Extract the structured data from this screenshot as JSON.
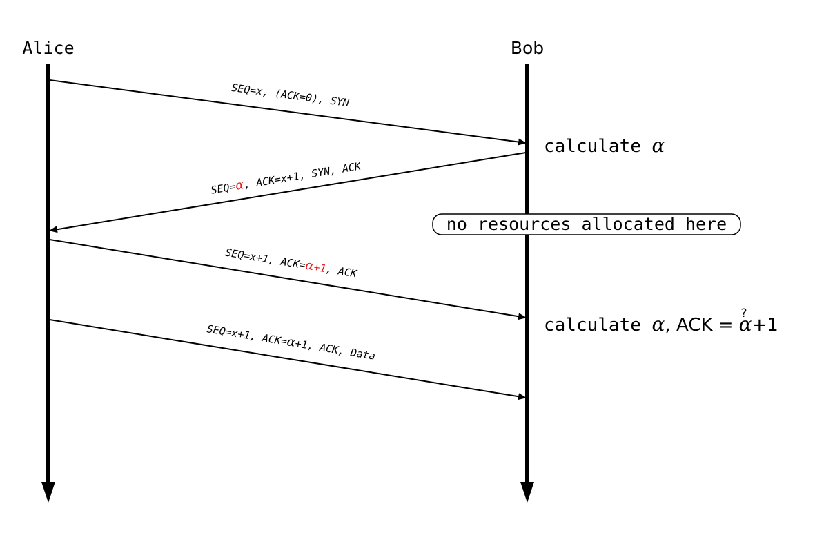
{
  "participants": {
    "alice": "Alice",
    "bob": "Bob"
  },
  "messages": [
    {
      "id": "m1",
      "parts": [
        {
          "t": "SEQ=x, (ACK=0), SYN",
          "red": false
        }
      ]
    },
    {
      "id": "m2",
      "parts": [
        {
          "t": "SEQ=",
          "red": false
        },
        {
          "t": "α",
          "red": true,
          "greek": true
        },
        {
          "t": ", ACK=x+1, SYN, ACK",
          "red": false
        }
      ]
    },
    {
      "id": "m3",
      "parts": [
        {
          "t": "SEQ=x+1, ACK=",
          "red": false
        },
        {
          "t": "α",
          "red": true,
          "greek": true
        },
        {
          "t": "+1",
          "red": true
        },
        {
          "t": ", ACK",
          "red": false
        }
      ]
    },
    {
      "id": "m4",
      "parts": [
        {
          "t": "SEQ=x+1, ACK=",
          "red": false
        },
        {
          "t": "α",
          "red": false,
          "greek": true
        },
        {
          "t": "+1, ACK, Data",
          "red": false
        }
      ]
    }
  ],
  "notes": {
    "calc1_text": "calculate ",
    "calc1_alpha": "α",
    "resources": "no resources allocated here",
    "calc2_text": "calculate ",
    "calc2_alpha": "α",
    "calc2_sep": ", ACK ",
    "calc2_eq": "=",
    "calc2_q": "?",
    "calc2_alpha2": "α",
    "calc2_tail": "+1"
  },
  "colors": {
    "line": "#000000",
    "highlight": "#e41a1c"
  }
}
